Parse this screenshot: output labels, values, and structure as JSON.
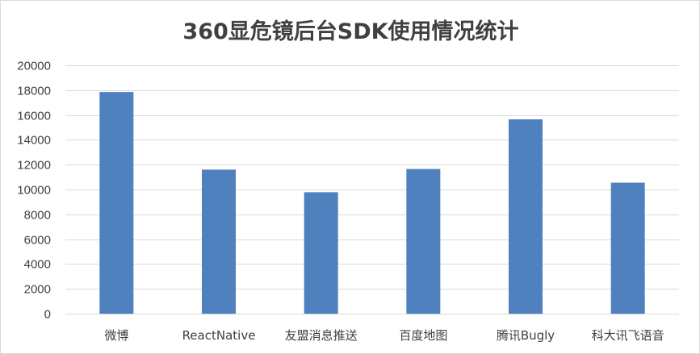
{
  "chart_data": {
    "type": "bar",
    "title": "360显危镜后台SDK使用情况统计",
    "xlabel": "",
    "ylabel": "",
    "categories": [
      "微博",
      "ReactNative",
      "友盟消息推送",
      "百度地图",
      "腾讯Bugly",
      "科大讯飞语音"
    ],
    "values": [
      17850,
      11600,
      9780,
      11650,
      15650,
      10550
    ],
    "ylim": [
      0,
      20000
    ],
    "yticks": [
      0,
      2000,
      4000,
      6000,
      8000,
      10000,
      12000,
      14000,
      16000,
      18000,
      20000
    ],
    "grid": true,
    "legend": "none",
    "bar_color": "#4e81bd",
    "grid_color": "#d9d9d9",
    "text_color": "#404040"
  }
}
